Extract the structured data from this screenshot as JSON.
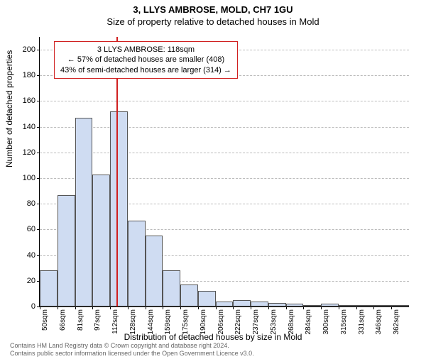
{
  "title_main": "3, LLYS AMBROSE, MOLD, CH7 1GU",
  "title_sub": "Size of property relative to detached houses in Mold",
  "yaxis_label": "Number of detached properties",
  "xaxis_label": "Distribution of detached houses by size in Mold",
  "chart": {
    "type": "histogram",
    "bar_fill": "#cfdcf2",
    "bar_stroke": "#555555",
    "grid_color": "#bbbbbb",
    "background": "#ffffff",
    "ylim": [
      0,
      210
    ],
    "ytick_step": 20,
    "ytick_max": 200,
    "x_start": 50,
    "x_step": 15.6,
    "x_count": 21,
    "x_unit": "sqm",
    "x_labels": [
      "50sqm",
      "66sqm",
      "81sqm",
      "97sqm",
      "112sqm",
      "128sqm",
      "144sqm",
      "159sqm",
      "175sqm",
      "190sqm",
      "206sqm",
      "222sqm",
      "237sqm",
      "253sqm",
      "268sqm",
      "284sqm",
      "300sqm",
      "315sqm",
      "331sqm",
      "346sqm",
      "362sqm"
    ],
    "values": [
      28,
      87,
      147,
      103,
      152,
      67,
      55,
      28,
      17,
      12,
      4,
      5,
      4,
      3,
      2,
      0,
      2,
      0,
      1,
      0,
      1
    ],
    "marker": {
      "x_value": 118,
      "color": "#d02020"
    },
    "annotation": {
      "lines": [
        "3 LLYS AMBROSE: 118sqm",
        "← 57% of detached houses are smaller (408)",
        "43% of semi-detached houses are larger (314) →"
      ],
      "border_color": "#d02020",
      "background": "#ffffff",
      "fontsize": 11
    }
  },
  "footer_line1": "Contains HM Land Registry data © Crown copyright and database right 2024.",
  "footer_line2": "Contains public sector information licensed under the Open Government Licence v3.0."
}
